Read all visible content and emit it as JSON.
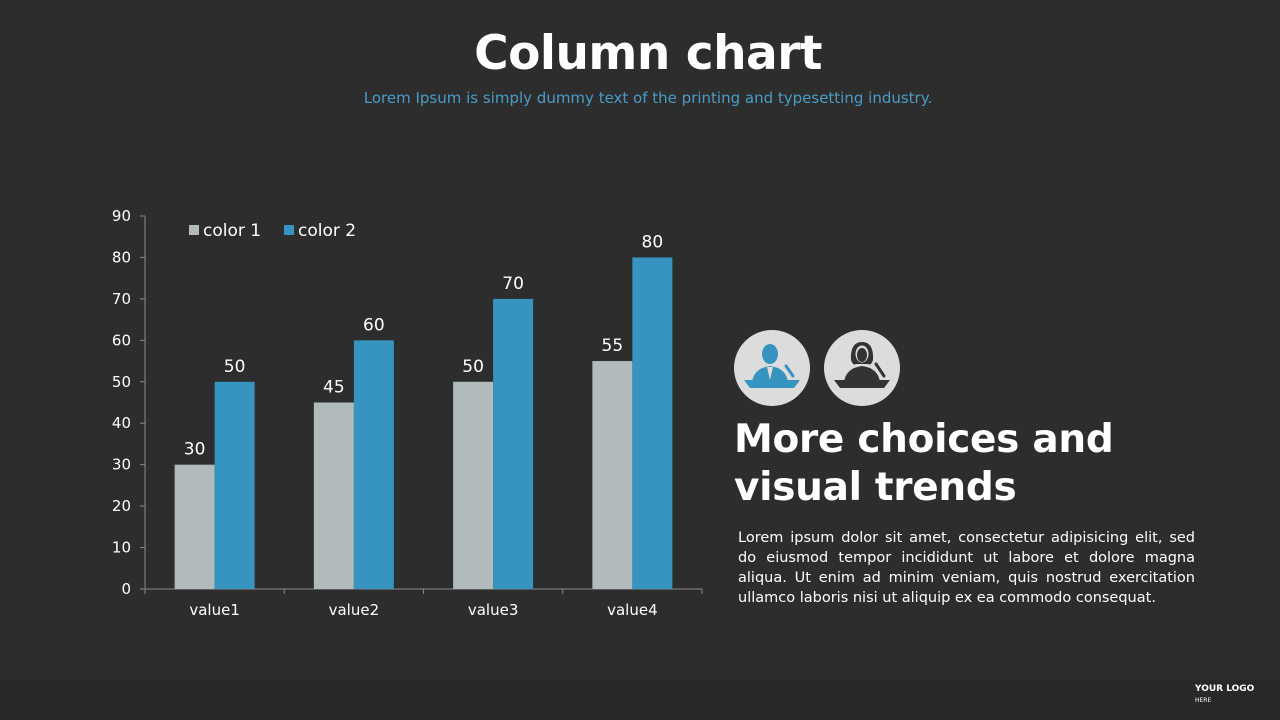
{
  "header": {
    "title": "Column chart",
    "subtitle": "Lorem Ipsum is simply dummy text of the printing and typesetting industry."
  },
  "chart_data": {
    "type": "bar",
    "categories": [
      "value1",
      "value2",
      "value3",
      "value4"
    ],
    "series": [
      {
        "name": "color 1",
        "values": [
          30,
          45,
          50,
          55
        ],
        "color": "#b1bbbb"
      },
      {
        "name": "color 2",
        "values": [
          50,
          60,
          70,
          80
        ],
        "color": "#3793bf"
      }
    ],
    "ylim": [
      0,
      90
    ],
    "yticks": [
      0,
      10,
      20,
      30,
      40,
      50,
      60,
      70,
      80,
      90
    ],
    "data_labels": true,
    "grid": false,
    "legend": "top-left",
    "title": "",
    "xlabel": "",
    "ylabel": ""
  },
  "side": {
    "icons": [
      "businessman-speaker-icon",
      "businesswoman-speaker-icon"
    ],
    "heading_line1": "More choices and",
    "heading_line2": "visual trends",
    "body": "Lorem ipsum dolor sit amet, consectetur adipisicing elit, sed do eiusmod tempor incididunt ut labore et dolore magna aliqua. Ut enim ad minim veniam, quis nostrud exercitation ullamco laboris nisi ut aliquip ex ea commodo consequat."
  },
  "logo": {
    "text": "YOUR LOGO",
    "sub": "HERE"
  },
  "colors": {
    "background": "#2d2d2d",
    "accent": "#3793bf",
    "muted": "#b1bbbb",
    "icon_bg": "#dcdcdc"
  }
}
